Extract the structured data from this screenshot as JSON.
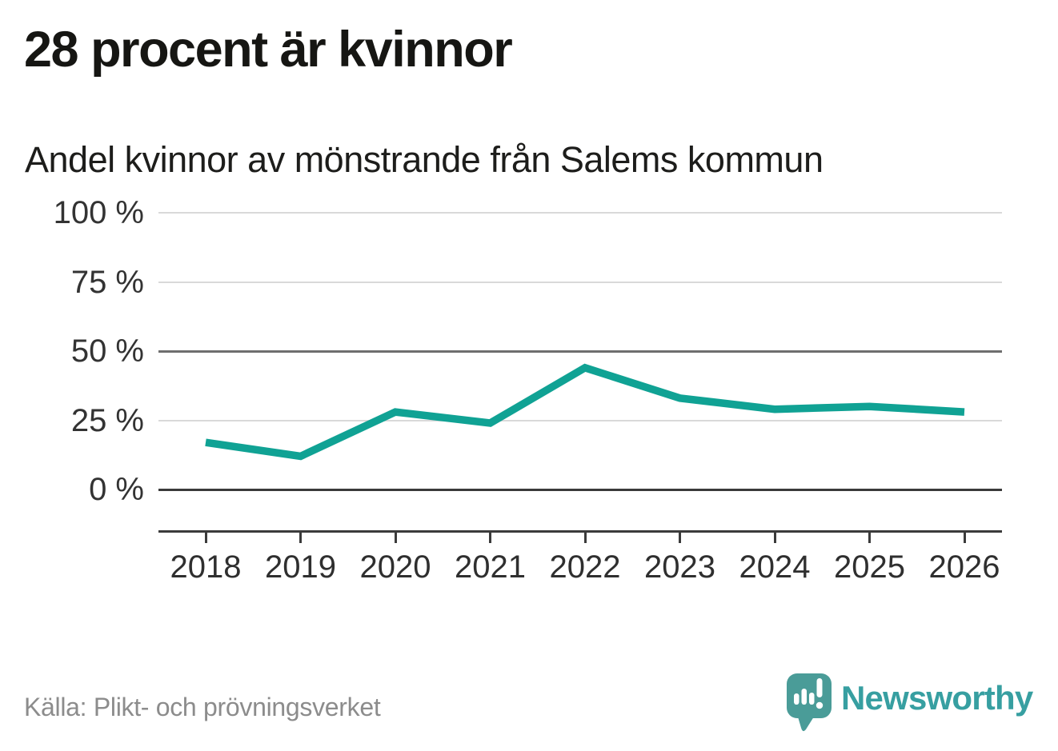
{
  "header": {
    "title": "28 procent är kvinnor",
    "subtitle": "Andel kvinnor av mönstrande från Salems kommun"
  },
  "chart_data": {
    "type": "line",
    "title": "28 procent är kvinnor",
    "subtitle": "Andel kvinnor av mönstrande från Salems kommun",
    "categories": [
      "2018",
      "2019",
      "2020",
      "2021",
      "2022",
      "2023",
      "2024",
      "2025",
      "2026"
    ],
    "series": [
      {
        "name": "Andel kvinnor av mönstrande från Salems kommun",
        "values": [
          17,
          12,
          28,
          24,
          44,
          33,
          29,
          30,
          28
        ]
      }
    ],
    "unit": "%",
    "xlabel": "",
    "ylabel": "",
    "ylim": [
      0,
      100
    ],
    "yticks": [
      0,
      25,
      50,
      75,
      100
    ],
    "ytick_labels": [
      "0 %",
      "25 %",
      "50 %",
      "75 %",
      "100 %"
    ],
    "grid": "horizontal",
    "legend": "none",
    "line_color": "#10a294"
  },
  "footer": {
    "source": "Källa: Plikt- och prövningsverket",
    "brand": "Newsworthy"
  },
  "colors": {
    "accent_line": "#10a294",
    "logo_mark": "#4a9c98",
    "wordmark": "#379fa1",
    "grid_light": "#d9d9d9",
    "grid_mid": "#6e6e6e",
    "axis_dark": "#3b3b3b",
    "text_dark": "#161613",
    "text_muted": "#8c8c8c"
  }
}
